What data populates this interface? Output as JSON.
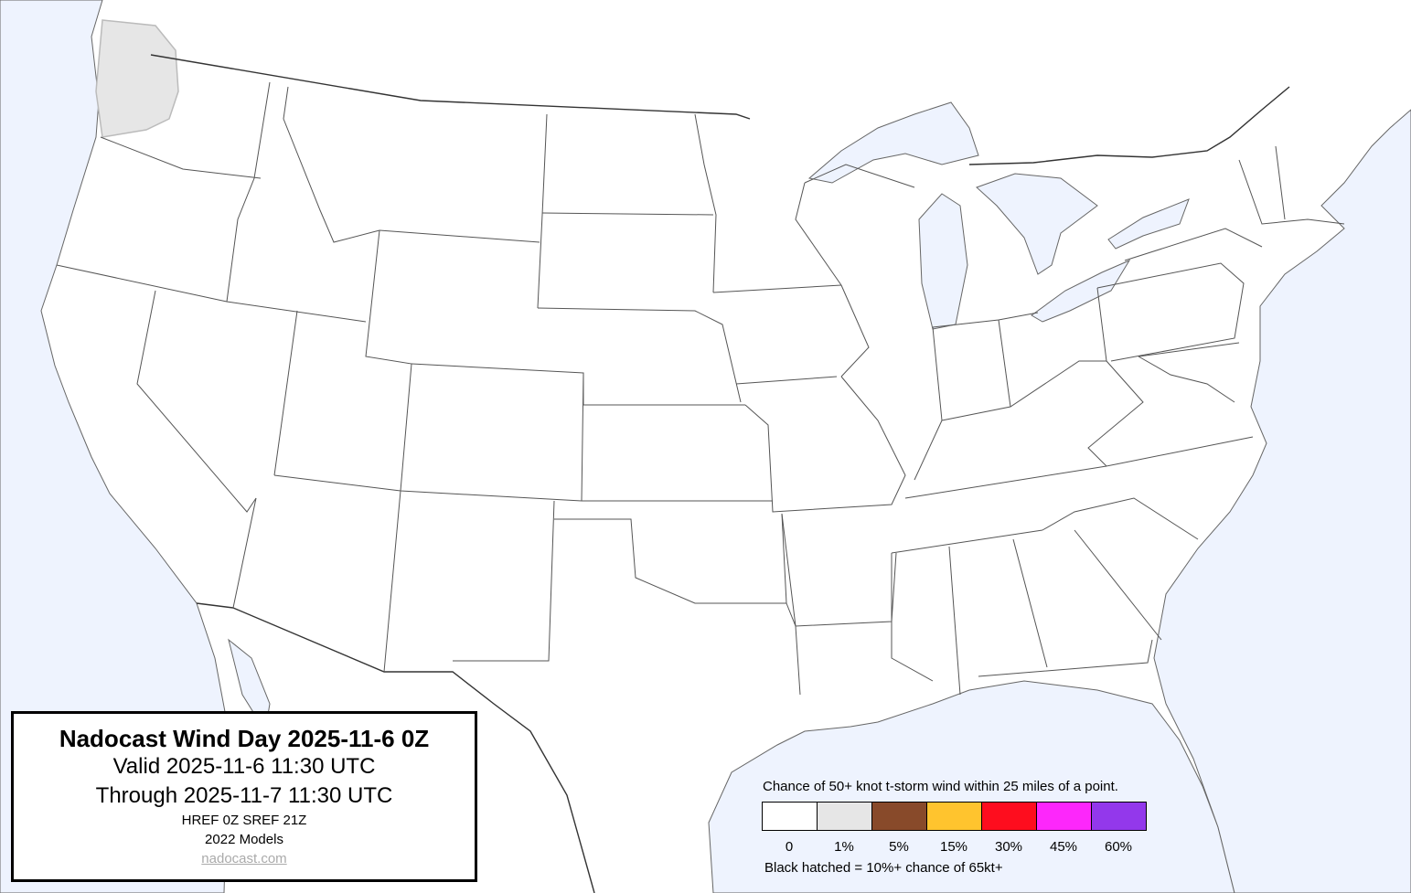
{
  "title_box": {
    "title": "Nadocast Wind Day 2025-11-6 0Z",
    "valid": "Valid 2025-11-6 11:30 UTC",
    "through": "Through 2025-11-7 11:30 UTC",
    "models_run": "HREF 0Z SREF 21Z",
    "models_version": "2022 Models",
    "site": "nadocast.com"
  },
  "legend": {
    "title": "Chance of 50+ knot t-storm wind within 25 miles of a point.",
    "items": [
      {
        "label": "0",
        "color": "#ffffff"
      },
      {
        "label": "1%",
        "color": "#e6e6e6"
      },
      {
        "label": "5%",
        "color": "#884a2a"
      },
      {
        "label": "15%",
        "color": "#ffc42e"
      },
      {
        "label": "30%",
        "color": "#fe0d1e"
      },
      {
        "label": "45%",
        "color": "#fd27fb"
      },
      {
        "label": "60%",
        "color": "#9338eb"
      }
    ],
    "hatched_note": "Black hatched = 10%+ chance of 65kt+"
  },
  "map": {
    "water_color": "#eef3fe",
    "land_color": "#ffffff",
    "forecast_areas": [
      {
        "level": "1%",
        "color": "#e6e6e6"
      }
    ]
  }
}
